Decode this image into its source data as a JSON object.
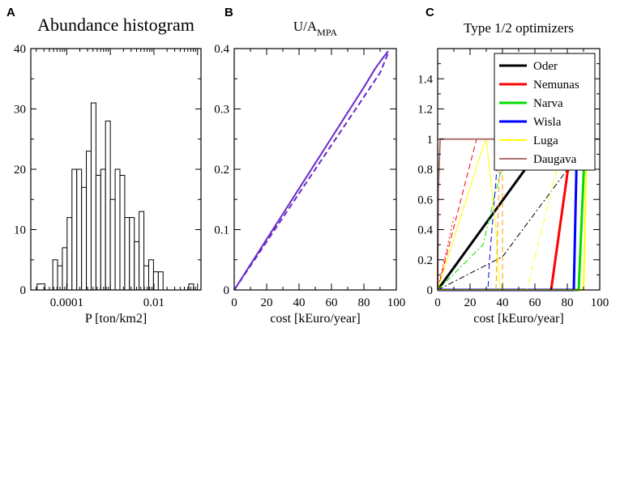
{
  "chart_data": [
    {
      "panel": "A",
      "type": "bar",
      "title": "Abundance histogram",
      "xlabel": "P [ton/km2]",
      "ylabel": "",
      "xscale": "log",
      "xlim": [
        1.5e-05,
        0.12
      ],
      "ylim": [
        0,
        40
      ],
      "yticks": [
        0,
        10,
        20,
        30,
        40
      ],
      "xticks": [
        {
          "value": 0.0001,
          "label": "0.0001"
        },
        {
          "value": 0.01,
          "label": "0.01"
        }
      ],
      "bins": [
        {
          "lo": 2.09e-05,
          "hi": 3.16e-05,
          "count": 1
        },
        {
          "lo": 4.79e-05,
          "hi": 6.17e-05,
          "count": 5
        },
        {
          "lo": 6.17e-05,
          "hi": 7.94e-05,
          "count": 4
        },
        {
          "lo": 7.94e-05,
          "hi": 0.000102,
          "count": 7
        },
        {
          "lo": 0.000102,
          "hi": 0.000132,
          "count": 12
        },
        {
          "lo": 0.000132,
          "hi": 0.00017,
          "count": 20
        },
        {
          "lo": 0.00017,
          "hi": 0.000219,
          "count": 20
        },
        {
          "lo": 0.000219,
          "hi": 0.000282,
          "count": 17
        },
        {
          "lo": 0.000282,
          "hi": 0.000363,
          "count": 23
        },
        {
          "lo": 0.000363,
          "hi": 0.000468,
          "count": 31
        },
        {
          "lo": 0.000468,
          "hi": 0.000603,
          "count": 19
        },
        {
          "lo": 0.000603,
          "hi": 0.000776,
          "count": 20
        },
        {
          "lo": 0.000776,
          "hi": 0.001,
          "count": 28
        },
        {
          "lo": 0.001,
          "hi": 0.00129,
          "count": 15
        },
        {
          "lo": 0.00129,
          "hi": 0.00166,
          "count": 20
        },
        {
          "lo": 0.00166,
          "hi": 0.00214,
          "count": 19
        },
        {
          "lo": 0.00214,
          "hi": 0.00275,
          "count": 12
        },
        {
          "lo": 0.00275,
          "hi": 0.00355,
          "count": 12
        },
        {
          "lo": 0.00355,
          "hi": 0.00457,
          "count": 8
        },
        {
          "lo": 0.00457,
          "hi": 0.00589,
          "count": 13
        },
        {
          "lo": 0.00589,
          "hi": 0.00759,
          "count": 4
        },
        {
          "lo": 0.00759,
          "hi": 0.00977,
          "count": 5
        },
        {
          "lo": 0.00977,
          "hi": 0.0126,
          "count": 3
        },
        {
          "lo": 0.0126,
          "hi": 0.0162,
          "count": 3
        },
        {
          "lo": 0.0631,
          "hi": 0.0813,
          "count": 1
        }
      ]
    },
    {
      "panel": "B",
      "type": "line",
      "title": "U/A",
      "title_sub": "MPA",
      "xlabel": "cost [kEuro/year]",
      "ylabel": "",
      "xlim": [
        0,
        100
      ],
      "ylim": [
        0,
        0.4
      ],
      "xticks": [
        0,
        20,
        40,
        60,
        80,
        100
      ],
      "yticks": [
        0,
        0.1,
        0.2,
        0.3,
        0.4
      ],
      "series": [
        {
          "name": "solid",
          "color": "#6a2bc7",
          "dash": "solid",
          "x": [
            0,
            10,
            20,
            30,
            40,
            50,
            60,
            70,
            80,
            87,
            91,
            95
          ],
          "y": [
            0,
            0.042,
            0.084,
            0.126,
            0.168,
            0.21,
            0.252,
            0.294,
            0.336,
            0.367,
            0.382,
            0.396
          ]
        },
        {
          "name": "dashed",
          "color": "#6a2bc7",
          "dash": "dashed",
          "x": [
            0,
            10,
            20,
            30,
            40,
            50,
            60,
            70,
            80,
            90,
            95
          ],
          "y": [
            0,
            0.04,
            0.08,
            0.12,
            0.16,
            0.2,
            0.24,
            0.28,
            0.32,
            0.36,
            0.393
          ]
        }
      ]
    },
    {
      "panel": "C",
      "type": "line",
      "title": "Type 1/2 optimizers",
      "xlabel": "cost [kEuro/year]",
      "ylabel": "",
      "xlim": [
        0,
        100
      ],
      "ylim": [
        0,
        1.6
      ],
      "xticks": [
        0,
        20,
        40,
        60,
        80,
        100
      ],
      "yticks": [
        0,
        0.2,
        0.4,
        0.6,
        0.8,
        1,
        1.2,
        1.4
      ],
      "legend_position": "top-right",
      "series": [
        {
          "name": "Oder",
          "color": "#000000",
          "width": 3,
          "dash": "solid",
          "x": [
            0,
            67.5
          ],
          "y": [
            0,
            1
          ]
        },
        {
          "name": "Oder type 2",
          "legend": false,
          "color": "#000000",
          "width": 1,
          "dash": "dashdot",
          "x": [
            0,
            40,
            94
          ],
          "y": [
            0,
            0.22,
            1
          ]
        },
        {
          "name": "Nemunas",
          "color": "#ff0000",
          "width": 3,
          "dash": "solid",
          "x": [
            0,
            70,
            83,
            84
          ],
          "y": [
            0,
            0,
            1,
            1
          ]
        },
        {
          "name": "Nemunas type 2",
          "legend": false,
          "color": "#ff0000",
          "width": 1,
          "dash": "dashed",
          "x": [
            0,
            24
          ],
          "y": [
            0,
            1
          ]
        },
        {
          "name": "Nemunas dotted",
          "legend": false,
          "color": "#ff0000",
          "width": 1,
          "dash": "dotted",
          "x": [
            0,
            10
          ],
          "y": [
            0,
            0.48
          ]
        },
        {
          "name": "Narva",
          "color": "#00dd00",
          "width": 3,
          "dash": "solid",
          "x": [
            0,
            87,
            91
          ],
          "y": [
            0,
            0,
            1
          ]
        },
        {
          "name": "Narva type 2",
          "legend": false,
          "color": "#00dd00",
          "width": 1,
          "dash": "dashdot",
          "x": [
            0,
            28,
            38,
            39,
            52
          ],
          "y": [
            0,
            0.3,
            0.75,
            0.78,
            1
          ]
        },
        {
          "name": "Wisla",
          "color": "#0000ff",
          "width": 3,
          "dash": "solid",
          "x": [
            0,
            84,
            86
          ],
          "y": [
            0,
            0,
            1
          ]
        },
        {
          "name": "Wisla type 2",
          "legend": false,
          "color": "#0000ff",
          "width": 1,
          "dash": "dashed",
          "x": [
            0,
            31,
            32,
            38
          ],
          "y": [
            0,
            0,
            0.2,
            1
          ]
        },
        {
          "name": "Luga",
          "color": "#ffff00",
          "width": 2,
          "dash": "solid",
          "x": [
            0,
            90,
            92,
            94
          ],
          "y": [
            0,
            0,
            0.98,
            1
          ]
        },
        {
          "name": "Luga type 2",
          "legend": false,
          "color": "#ffff00",
          "width": 1,
          "dash": "dashdot",
          "x": [
            0,
            55,
            78
          ],
          "y": [
            0,
            0,
            1
          ]
        },
        {
          "name": "Luga steep",
          "legend": false,
          "color": "#ffff00",
          "width": 1,
          "dash": "solid",
          "x": [
            0,
            28,
            30,
            36,
            38,
            40
          ],
          "y": [
            0,
            0.95,
            1,
            0.4,
            0.05,
            0
          ]
        },
        {
          "name": "Orange type 2",
          "legend": false,
          "color": "#ff9900",
          "width": 1,
          "dash": "dashed",
          "x": [
            36,
            37,
            38,
            40,
            40
          ],
          "y": [
            0,
            0.4,
            0.78,
            1,
            0
          ]
        },
        {
          "name": "Daugava",
          "color": "#b07070",
          "width": 2,
          "dash": "solid",
          "x": [
            0,
            0.3,
            1.5,
            100
          ],
          "y": [
            0,
            0.65,
            1,
            1
          ]
        }
      ]
    }
  ],
  "labels": {
    "panel_a": "A",
    "panel_b": "B",
    "panel_c": "C"
  }
}
